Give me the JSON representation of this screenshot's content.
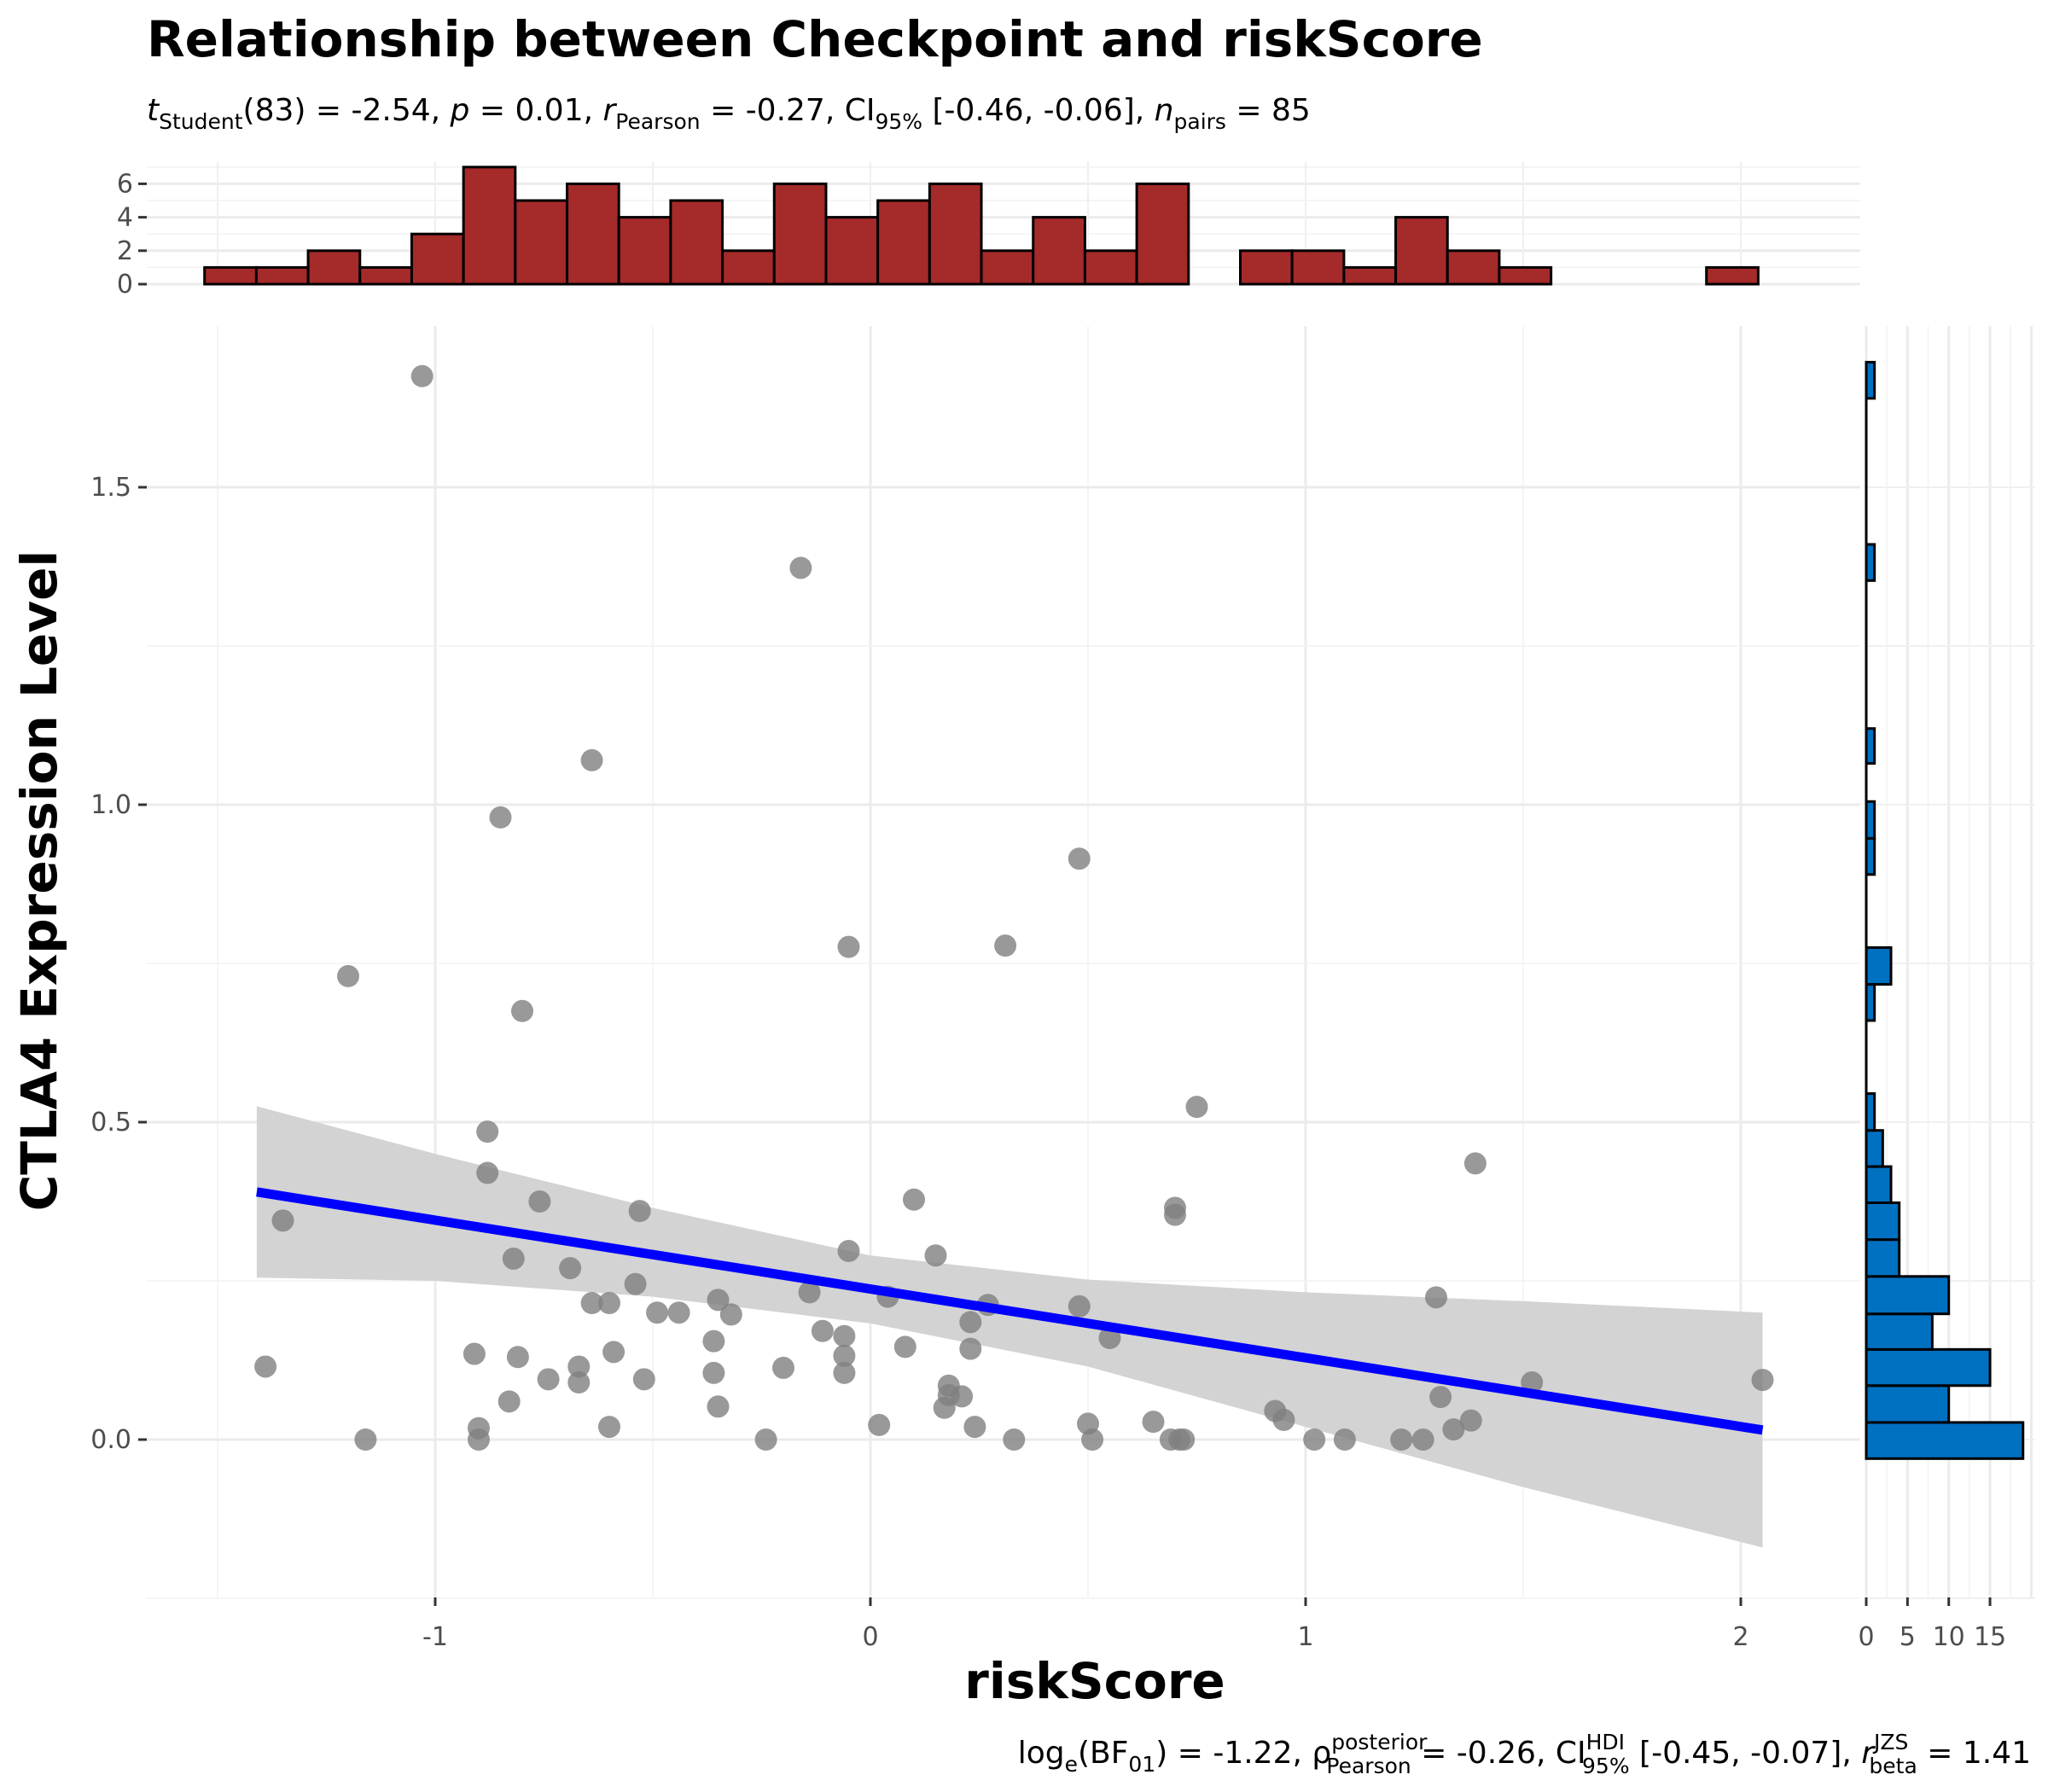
{
  "chart_data": {
    "type": "scatter",
    "title": "Relationship between Checkpoint and riskScore",
    "subtitle": {
      "t_label": "t",
      "t_sub": "Student",
      "t_text": "(83) = -2.54, ",
      "p_label": "p",
      "p_text": " = 0.01, ",
      "r_label": "r",
      "r_sub": "Pearson",
      "r_text": " = -0.27, CI",
      "ci_sub": "95%",
      "ci_text": " [-0.46, -0.06], ",
      "n_label": "n",
      "n_sub": "pairs",
      "n_text": " = 85"
    },
    "caption": {
      "a": "log",
      "a_sub": "e",
      "b": "(BF",
      "b_sub": "01",
      "c": ") = -1.22, ",
      "rho": "ρ",
      "rho_sup": "posterior",
      "rho_sub": "Pearson",
      "d": " = -0.26, CI",
      "ci_sup": "HDI",
      "ci_sub": "95%",
      "e": " [-0.45, -0.07], ",
      "r": "r",
      "r_sup": "JZS",
      "r_sub": "beta",
      "f": " = 1.41"
    },
    "xlabel": "riskScore",
    "ylabel": "CTLA4 Expression Level",
    "xlim": [
      -1.67,
      2.24
    ],
    "ylim": [
      -0.25,
      1.68
    ],
    "xticks": [
      -1,
      0,
      1,
      2
    ],
    "xtick_labels": [
      "-1",
      "0",
      "1",
      "2"
    ],
    "yticks": [
      0.0,
      0.5,
      1.0,
      1.5
    ],
    "ytick_labels": [
      "0.0",
      "0.5",
      "1.0",
      "1.5"
    ],
    "points": [
      [
        -1.39,
        0.115
      ],
      [
        -1.35,
        0.345
      ],
      [
        -1.2,
        0.73
      ],
      [
        -1.16,
        0.0
      ],
      [
        -1.03,
        1.675
      ],
      [
        -0.91,
        0.135
      ],
      [
        -0.9,
        0.018
      ],
      [
        -0.9,
        0.0
      ],
      [
        -0.88,
        0.485
      ],
      [
        -0.88,
        0.42
      ],
      [
        -0.85,
        0.98
      ],
      [
        -0.83,
        0.06
      ],
      [
        -0.82,
        0.285
      ],
      [
        -0.81,
        0.13
      ],
      [
        -0.8,
        0.675
      ],
      [
        -0.76,
        0.375
      ],
      [
        -0.74,
        0.095
      ],
      [
        -0.69,
        0.27
      ],
      [
        -0.67,
        0.115
      ],
      [
        -0.67,
        0.09
      ],
      [
        -0.64,
        0.215
      ],
      [
        -0.64,
        1.07
      ],
      [
        -0.6,
        0.02
      ],
      [
        -0.6,
        0.215
      ],
      [
        -0.59,
        0.138
      ],
      [
        -0.54,
        0.245
      ],
      [
        -0.53,
        0.36
      ],
      [
        -0.52,
        0.095
      ],
      [
        -0.49,
        0.2
      ],
      [
        -0.44,
        0.2
      ],
      [
        -0.36,
        0.105
      ],
      [
        -0.36,
        0.155
      ],
      [
        -0.35,
        0.052
      ],
      [
        -0.35,
        0.22
      ],
      [
        -0.32,
        0.197
      ],
      [
        -0.24,
        0.0
      ],
      [
        -0.2,
        0.113
      ],
      [
        -0.16,
        1.373
      ],
      [
        -0.14,
        0.232
      ],
      [
        -0.11,
        0.171
      ],
      [
        -0.06,
        0.163
      ],
      [
        -0.06,
        0.105
      ],
      [
        -0.06,
        0.132
      ],
      [
        -0.05,
        0.776
      ],
      [
        -0.05,
        0.297
      ],
      [
        0.02,
        0.023
      ],
      [
        0.04,
        0.225
      ],
      [
        0.08,
        0.146
      ],
      [
        0.1,
        0.378
      ],
      [
        0.15,
        0.29
      ],
      [
        0.17,
        0.05
      ],
      [
        0.18,
        0.085
      ],
      [
        0.18,
        0.07
      ],
      [
        0.21,
        0.068
      ],
      [
        0.23,
        0.185
      ],
      [
        0.23,
        0.143
      ],
      [
        0.24,
        0.02
      ],
      [
        0.27,
        0.212
      ],
      [
        0.31,
        0.778
      ],
      [
        0.33,
        0.0
      ],
      [
        0.48,
        0.915
      ],
      [
        0.48,
        0.21
      ],
      [
        0.5,
        0.025
      ],
      [
        0.51,
        0.0
      ],
      [
        0.55,
        0.16
      ],
      [
        0.65,
        0.028
      ],
      [
        0.69,
        0.0
      ],
      [
        0.7,
        0.365
      ],
      [
        0.7,
        0.354
      ],
      [
        0.71,
        0.0
      ],
      [
        0.72,
        0.0
      ],
      [
        0.75,
        0.524
      ],
      [
        0.93,
        0.045
      ],
      [
        0.95,
        0.031
      ],
      [
        1.02,
        0.0
      ],
      [
        1.09,
        0.0
      ],
      [
        1.22,
        0.0
      ],
      [
        1.27,
        0.0
      ],
      [
        1.3,
        0.224
      ],
      [
        1.31,
        0.067
      ],
      [
        1.34,
        0.016
      ],
      [
        1.38,
        0.03
      ],
      [
        1.39,
        0.435
      ],
      [
        1.52,
        0.09
      ],
      [
        2.05,
        0.094
      ]
    ],
    "regression": {
      "x": [
        -1.41,
        2.05
      ],
      "y": [
        0.39,
        0.015
      ],
      "color": "#0000ff"
    },
    "confidence_band": {
      "x": [
        -1.41,
        -1.0,
        -0.5,
        0.0,
        0.5,
        1.0,
        1.5,
        2.05
      ],
      "upper": [
        0.525,
        0.45,
        0.365,
        0.29,
        0.252,
        0.232,
        0.218,
        0.2
      ],
      "lower": [
        0.255,
        0.25,
        0.225,
        0.183,
        0.115,
        0.02,
        -0.075,
        -0.17
      ],
      "color": "#d3d3d3"
    },
    "top_histogram": {
      "color": "#a52a2a",
      "bin_start": -1.53,
      "bin_width": 0.119,
      "counts": [
        1,
        1,
        2,
        1,
        3,
        7,
        5,
        6,
        4,
        5,
        2,
        6,
        4,
        5,
        6,
        2,
        4,
        2,
        6,
        0,
        2,
        2,
        1,
        4,
        2,
        1,
        0,
        0,
        0,
        1
      ],
      "yticks": [
        0,
        2,
        4,
        6
      ],
      "ytick_labels": [
        "0",
        "2",
        "4",
        "6"
      ]
    },
    "right_histogram": {
      "color": "#0070c0",
      "bins": [
        [
          -0.03,
          0.027,
          19
        ],
        [
          0.027,
          0.085,
          10
        ],
        [
          0.085,
          0.142,
          15
        ],
        [
          0.142,
          0.198,
          8
        ],
        [
          0.198,
          0.257,
          10
        ],
        [
          0.257,
          0.315,
          4
        ],
        [
          0.315,
          0.373,
          4
        ],
        [
          0.373,
          0.43,
          3
        ],
        [
          0.43,
          0.487,
          2
        ],
        [
          0.487,
          0.545,
          1
        ],
        [
          0.66,
          0.717,
          1
        ],
        [
          0.717,
          0.775,
          3
        ],
        [
          0.89,
          0.947,
          1
        ],
        [
          0.947,
          1.005,
          1
        ],
        [
          1.065,
          1.12,
          1
        ],
        [
          1.353,
          1.41,
          1
        ],
        [
          1.64,
          1.697,
          1
        ]
      ],
      "xticks": [
        0,
        5,
        10,
        15
      ],
      "xtick_labels": [
        "0",
        "5",
        "10",
        "15"
      ]
    },
    "point_color": "#7f7f7f",
    "grid": true
  }
}
